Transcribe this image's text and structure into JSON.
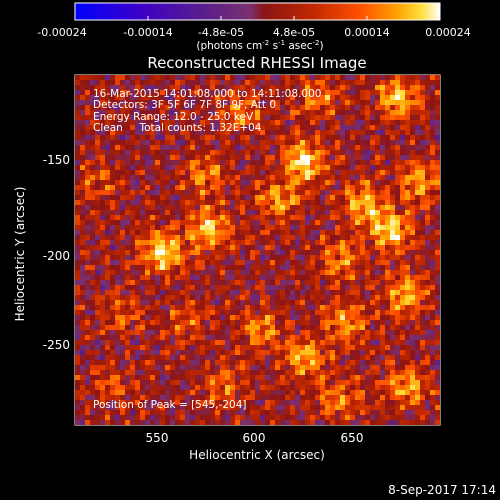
{
  "colorbar": {
    "ticks": [
      "-0.00024",
      "-0.00014",
      "-4.8e-05",
      "4.8e-05",
      "0.00014",
      "0.00024"
    ],
    "units_parts": [
      "(photons cm",
      "-2",
      " s",
      "-1",
      " asec",
      "-2",
      ")"
    ]
  },
  "plot": {
    "title": "Reconstructed RHESSI Image",
    "xlabel": "Heliocentric X (arcsec)",
    "ylabel": "Heliocentric Y (arcsec)",
    "xticks": [
      "550",
      "600",
      "650"
    ],
    "yticks": [
      "-150",
      "-200",
      "-250"
    ],
    "annotations": [
      "16-Mar-2015 14:01:08.000 to 14:11:08.000",
      "Detectors: 3F 5F 6F 7F 8F 9F, Att 0",
      "Energy Range: 12.0 - 25.0 keV",
      "Clean     Total counts: 1.32E+04"
    ],
    "peak_label": "Position of Peak = [545,-204]"
  },
  "footer": {
    "timestamp": "8-Sep-2017 17:14"
  },
  "chart_data": {
    "type": "heatmap",
    "title": "Reconstructed RHESSI Image",
    "xlabel": "Heliocentric X (arcsec)",
    "ylabel": "Heliocentric Y (arcsec)",
    "xlim": [
      505,
      692
    ],
    "ylim": [
      -296,
      -116
    ],
    "zlim": [
      -0.00024,
      0.00024
    ],
    "peak": [
      545,
      -204
    ],
    "colormap": [
      "#0000ff",
      "#3c00c8",
      "#5a1e8c",
      "#7a3070",
      "#8c1414",
      "#c02800",
      "#ff5000",
      "#ffa000",
      "#ffe040",
      "#ffffff"
    ]
  }
}
